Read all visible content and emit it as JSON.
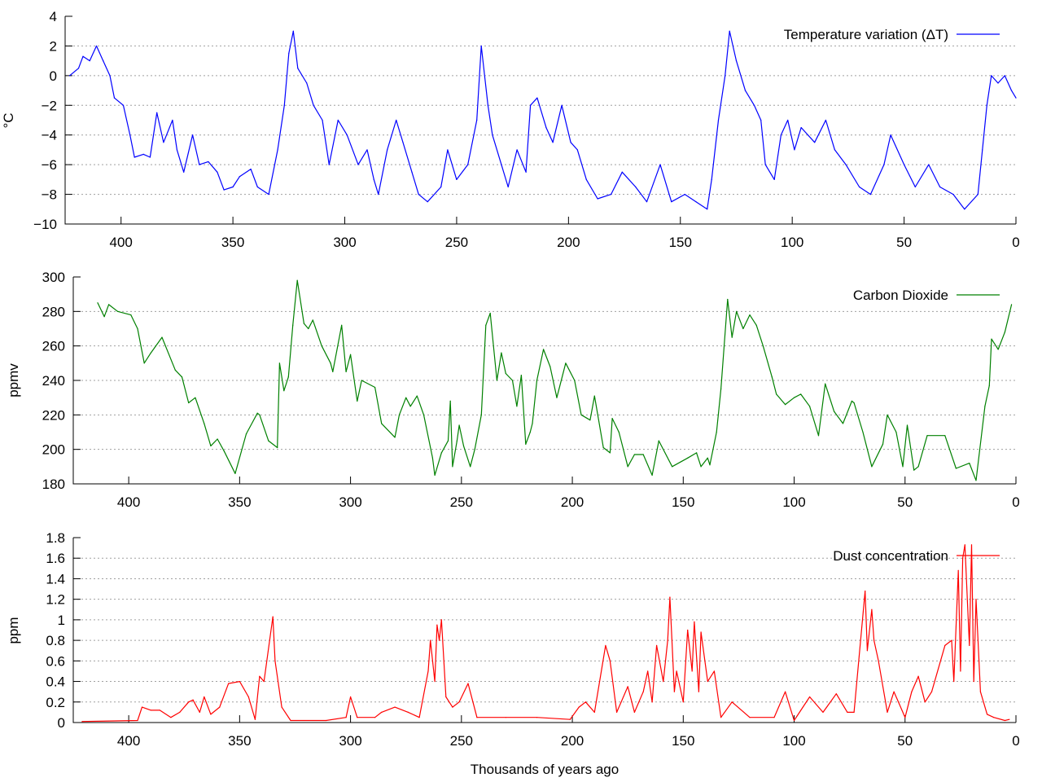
{
  "chart_data": [
    {
      "type": "line",
      "ylabel": "°C",
      "xlabel": "",
      "xlim": [
        425,
        0
      ],
      "ylim": [
        -10,
        4
      ],
      "grid": true,
      "legend_position": "top-right",
      "yticks": [
        "−10",
        "−8",
        "−6",
        "−4",
        "−2",
        "0",
        "2",
        "4"
      ],
      "ytick_values": [
        -10,
        -8,
        -6,
        -4,
        -2,
        0,
        2,
        4
      ],
      "xticks": [
        "400",
        "350",
        "300",
        "250",
        "200",
        "150",
        "100",
        "50",
        "0"
      ],
      "xtick_values": [
        400,
        350,
        300,
        250,
        200,
        150,
        100,
        50,
        0
      ],
      "series": [
        {
          "name": "Temperature variation (ΔT)",
          "color": "#0000ff",
          "x": [
            423,
            419,
            417,
            414,
            411,
            408,
            405,
            403,
            399,
            396,
            394,
            390,
            387,
            384,
            381,
            377,
            375,
            372,
            368,
            365,
            361,
            357,
            354,
            350,
            347,
            342,
            339,
            334,
            330,
            327,
            325,
            323,
            321,
            317,
            314,
            310,
            307,
            303,
            299,
            294,
            290,
            287,
            285,
            281,
            277,
            274,
            270,
            267,
            263,
            257,
            254,
            250,
            245,
            241,
            239,
            236,
            234,
            230,
            227,
            223,
            219,
            217,
            214,
            210,
            207,
            203,
            199,
            196,
            192,
            187,
            181,
            176,
            170,
            165,
            159,
            154,
            148,
            143,
            138,
            136,
            133,
            130,
            128,
            125,
            121,
            117,
            114,
            112,
            108,
            105,
            102,
            99,
            96,
            90,
            85,
            81,
            76,
            70,
            65,
            59,
            56,
            50,
            45,
            39,
            34,
            28,
            23,
            17,
            15,
            13,
            11,
            8,
            5,
            2,
            0
          ],
          "y": [
            0,
            0.5,
            1.3,
            1.0,
            2.0,
            1.0,
            0,
            -1.5,
            -2,
            -4,
            -5.5,
            -5.3,
            -5.5,
            -2.5,
            -4.5,
            -3,
            -5,
            -6.5,
            -4,
            -6,
            -5.8,
            -6.5,
            -7.7,
            -7.5,
            -6.8,
            -6.3,
            -7.5,
            -8,
            -5,
            -2,
            1.5,
            3,
            0.5,
            -0.5,
            -2,
            -3,
            -6,
            -3,
            -4,
            -6,
            -5,
            -7,
            -8,
            -5,
            -3,
            -4.5,
            -6.5,
            -8,
            -8.5,
            -7.5,
            -5,
            -7,
            -6,
            -3,
            2,
            -2,
            -4,
            -6,
            -7.5,
            -5,
            -6.5,
            -2,
            -1.5,
            -3.5,
            -4.5,
            -2,
            -4.5,
            -5,
            -7,
            -8.3,
            -8,
            -6.5,
            -7.5,
            -8.5,
            -6,
            -8.5,
            -8,
            -8.5,
            -9,
            -7,
            -3,
            0,
            3,
            1,
            -1,
            -2,
            -3,
            -6,
            -7,
            -4,
            -3,
            -5,
            -3.5,
            -4.5,
            -3,
            -5,
            -6,
            -7.5,
            -8,
            -6,
            -4,
            -6,
            -7.5,
            -6,
            -7.5,
            -8,
            -9,
            -8,
            -5,
            -2,
            0,
            -0.5,
            0,
            -1,
            -1.5
          ]
        }
      ]
    },
    {
      "type": "line",
      "ylabel": "ppmv",
      "xlabel": "",
      "xlim": [
        425,
        0
      ],
      "ylim": [
        180,
        300
      ],
      "grid": true,
      "legend_position": "top-right",
      "yticks": [
        "180",
        "200",
        "220",
        "240",
        "260",
        "280",
        "300"
      ],
      "ytick_values": [
        180,
        200,
        220,
        240,
        260,
        280,
        300
      ],
      "xticks": [
        "400",
        "350",
        "300",
        "250",
        "200",
        "150",
        "100",
        "50",
        "0"
      ],
      "xtick_values": [
        400,
        350,
        300,
        250,
        200,
        150,
        100,
        50,
        0
      ],
      "series": [
        {
          "name": "Carbon Dioxide",
          "color": "#008000",
          "x": [
            414,
            411,
            409,
            405,
            399,
            396,
            393,
            390,
            385,
            379,
            376,
            373,
            370,
            366,
            363,
            360,
            357,
            352,
            347,
            342,
            341,
            337,
            333,
            332,
            330,
            328,
            326,
            324,
            321,
            319,
            317,
            313,
            309,
            308,
            304,
            302,
            300,
            297,
            295,
            289,
            286,
            280,
            278,
            275,
            273,
            270,
            267,
            263,
            262,
            259,
            256,
            255,
            254,
            252,
            251,
            249,
            246,
            244,
            241,
            239,
            237,
            234,
            232,
            230,
            227,
            225,
            223,
            221,
            219,
            218,
            216,
            213,
            210,
            207,
            203,
            199,
            196,
            192,
            190,
            186,
            183,
            182,
            179,
            175,
            172,
            168,
            164,
            161,
            155,
            148,
            144,
            142,
            139,
            138,
            135,
            133,
            130,
            128,
            126,
            123,
            120,
            117,
            114,
            110,
            108,
            104,
            100,
            97,
            93,
            89,
            86,
            82,
            78,
            74,
            73,
            69,
            65,
            60,
            58,
            54,
            51,
            49,
            46,
            44,
            40,
            32,
            27,
            21,
            18,
            14,
            12,
            11,
            8,
            5,
            2
          ],
          "y": [
            285,
            277,
            284,
            280,
            278,
            270,
            250,
            256,
            265,
            246,
            242,
            227,
            230,
            215,
            202,
            206,
            199,
            186,
            209,
            221,
            220,
            205,
            201,
            250,
            234,
            242,
            272,
            298,
            273,
            270,
            275,
            260,
            250,
            245,
            272,
            245,
            255,
            228,
            240,
            236,
            215,
            207,
            220,
            230,
            225,
            231,
            220,
            195,
            185,
            198,
            205,
            228,
            190,
            205,
            214,
            202,
            190,
            200,
            220,
            272,
            279,
            240,
            256,
            244,
            240,
            225,
            243,
            203,
            210,
            215,
            240,
            258,
            248,
            230,
            250,
            240,
            220,
            217,
            231,
            201,
            198,
            218,
            210,
            190,
            197,
            197,
            185,
            205,
            190,
            195,
            198,
            190,
            195,
            191,
            210,
            235,
            287,
            265,
            280,
            270,
            278,
            272,
            260,
            242,
            232,
            226,
            230,
            232,
            225,
            208,
            238,
            222,
            215,
            228,
            227,
            210,
            190,
            203,
            220,
            210,
            190,
            214,
            188,
            190,
            208,
            208,
            189,
            192,
            182,
            225,
            237,
            264,
            258,
            268,
            284
          ]
        }
      ]
    },
    {
      "type": "line",
      "ylabel": "ppm",
      "xlabel": "Thousands of years ago",
      "xlim": [
        425,
        0
      ],
      "ylim": [
        0,
        1.8
      ],
      "grid": true,
      "legend_position": "top-right",
      "yticks": [
        "0",
        "0.2",
        "0.4",
        "0.6",
        "0.8",
        "1",
        "1.2",
        "1.4",
        "1.6",
        "1.8"
      ],
      "ytick_values": [
        0,
        0.2,
        0.4,
        0.6,
        0.8,
        1,
        1.2,
        1.4,
        1.6,
        1.8
      ],
      "xticks": [
        "400",
        "350",
        "300",
        "250",
        "200",
        "150",
        "100",
        "50",
        "0"
      ],
      "xtick_values": [
        400,
        350,
        300,
        250,
        200,
        150,
        100,
        50,
        0
      ],
      "series": [
        {
          "name": "Dust concentration",
          "color": "#ff0000",
          "x": [
            421,
            396,
            394,
            390,
            386,
            381,
            377,
            373,
            371,
            368,
            366,
            363,
            359,
            355,
            350,
            346,
            343,
            341,
            339,
            335,
            334,
            331,
            327,
            311,
            302,
            300,
            297,
            289,
            286,
            280,
            274,
            269,
            265,
            264,
            262,
            261,
            260,
            259,
            257,
            254,
            251,
            247,
            243,
            230,
            216,
            201,
            197,
            194,
            190,
            185,
            183,
            180,
            175,
            172,
            168,
            166,
            164,
            162,
            159,
            157,
            156,
            154,
            153,
            150,
            148,
            146,
            145,
            143,
            142,
            139,
            136,
            133,
            128,
            120,
            109,
            104,
            100,
            93,
            87,
            81,
            76,
            73,
            68,
            67,
            65,
            64,
            62,
            58,
            55,
            53,
            50,
            47,
            44,
            41,
            38,
            32,
            29,
            28,
            26,
            25,
            24,
            23,
            21,
            20,
            19,
            18,
            16,
            13,
            10,
            5,
            3
          ],
          "y": [
            0.01,
            0.02,
            0.15,
            0.12,
            0.12,
            0.05,
            0.1,
            0.2,
            0.22,
            0.1,
            0.25,
            0.08,
            0.15,
            0.38,
            0.4,
            0.25,
            0.03,
            0.45,
            0.4,
            1.03,
            0.6,
            0.15,
            0.02,
            0.02,
            0.05,
            0.25,
            0.05,
            0.05,
            0.1,
            0.15,
            0.1,
            0.05,
            0.5,
            0.8,
            0.4,
            0.95,
            0.8,
            1.0,
            0.25,
            0.15,
            0.2,
            0.38,
            0.05,
            0.05,
            0.05,
            0.03,
            0.15,
            0.2,
            0.1,
            0.75,
            0.6,
            0.1,
            0.35,
            0.1,
            0.3,
            0.5,
            0.2,
            0.75,
            0.4,
            0.8,
            1.22,
            0.3,
            0.5,
            0.2,
            0.9,
            0.5,
            0.98,
            0.3,
            0.88,
            0.4,
            0.5,
            0.05,
            0.2,
            0.05,
            0.05,
            0.3,
            0.02,
            0.25,
            0.1,
            0.28,
            0.1,
            0.1,
            1.28,
            0.7,
            1.1,
            0.8,
            0.6,
            0.1,
            0.3,
            0.2,
            0.05,
            0.3,
            0.45,
            0.2,
            0.3,
            0.75,
            0.8,
            0.4,
            1.48,
            0.5,
            1.6,
            1.73,
            0.75,
            1.73,
            0.4,
            1.2,
            0.3,
            0.08,
            0.05,
            0.02,
            0.03
          ]
        }
      ]
    }
  ]
}
